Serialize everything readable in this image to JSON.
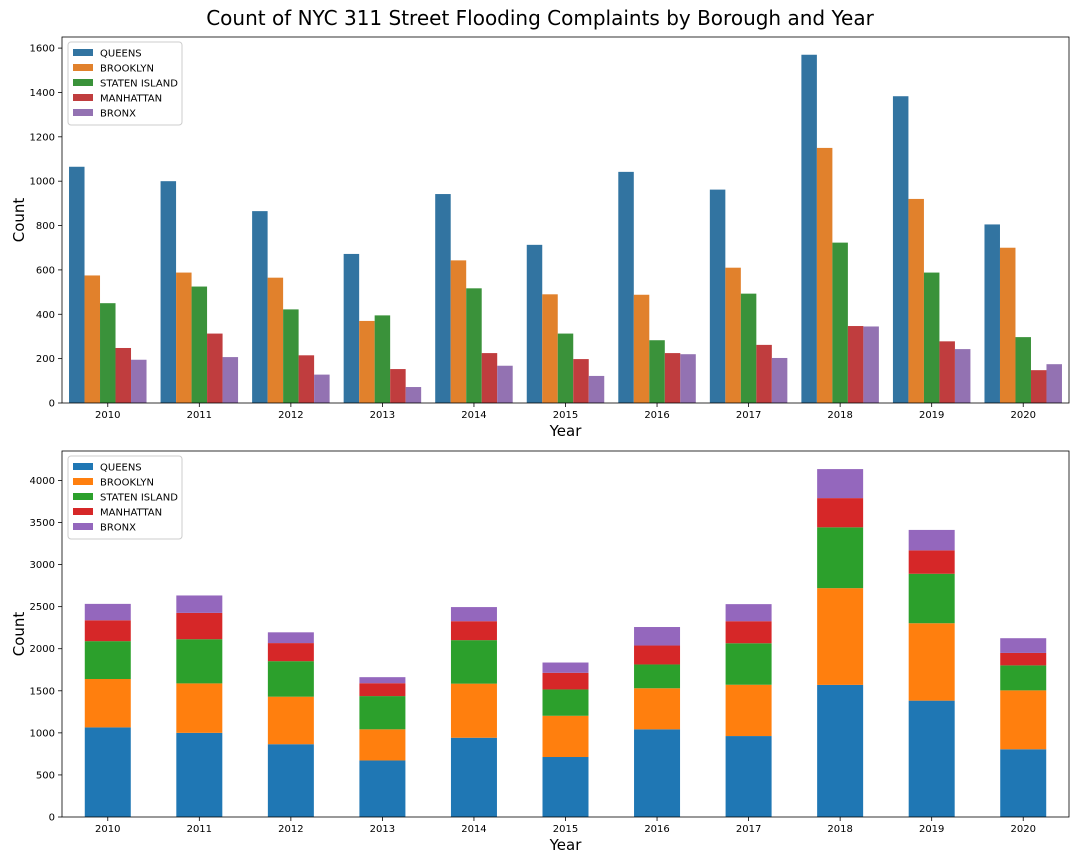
{
  "figure": {
    "title": "Count of NYC 311 Street Flooding Complaints by Borough and Year"
  },
  "colors": {
    "top": [
      "#3274a1",
      "#e1812c",
      "#3a923a",
      "#c03d3e",
      "#9372b2"
    ],
    "bottom": [
      "#1f77b4",
      "#ff7f0e",
      "#2ca02c",
      "#d62728",
      "#9467bd"
    ]
  },
  "chart_data": [
    {
      "type": "bar",
      "mode": "grouped",
      "title": "Count of NYC 311 Street Flooding Complaints by Borough and Year",
      "xlabel": "Year",
      "ylabel": "Count",
      "ylim": [
        0,
        1650
      ],
      "yticks": [
        0,
        200,
        400,
        600,
        800,
        1000,
        1200,
        1400,
        1600
      ],
      "legend_position": "top-left",
      "grid": false,
      "categories": [
        "2010",
        "2011",
        "2012",
        "2013",
        "2014",
        "2015",
        "2016",
        "2017",
        "2018",
        "2019",
        "2020"
      ],
      "series": [
        {
          "name": "QUEENS",
          "values": [
            1065,
            1000,
            865,
            672,
            942,
            713,
            1042,
            962,
            1570,
            1383,
            805
          ]
        },
        {
          "name": "BROOKLYN",
          "values": [
            575,
            588,
            565,
            370,
            643,
            490,
            488,
            610,
            1150,
            920,
            700
          ]
        },
        {
          "name": "STATEN ISLAND",
          "values": [
            450,
            525,
            422,
            395,
            517,
            313,
            283,
            493,
            723,
            588,
            297
          ]
        },
        {
          "name": "MANHATTAN",
          "values": [
            248,
            313,
            215,
            153,
            225,
            198,
            225,
            262,
            347,
            278,
            148
          ]
        },
        {
          "name": "BRONX",
          "values": [
            195,
            207,
            128,
            72,
            168,
            122,
            220,
            203,
            345,
            243,
            175
          ]
        }
      ]
    },
    {
      "type": "bar",
      "mode": "stacked",
      "xlabel": "Year",
      "ylabel": "Count",
      "ylim": [
        0,
        4350
      ],
      "yticks": [
        0,
        500,
        1000,
        1500,
        2000,
        2500,
        3000,
        3500,
        4000
      ],
      "legend_position": "top-left",
      "grid": false,
      "categories": [
        "2010",
        "2011",
        "2012",
        "2013",
        "2014",
        "2015",
        "2016",
        "2017",
        "2018",
        "2019",
        "2020"
      ],
      "series": [
        {
          "name": "QUEENS",
          "values": [
            1065,
            1000,
            865,
            672,
            942,
            713,
            1042,
            962,
            1570,
            1383,
            805
          ]
        },
        {
          "name": "BROOKLYN",
          "values": [
            575,
            588,
            565,
            370,
            643,
            490,
            488,
            610,
            1150,
            920,
            700
          ]
        },
        {
          "name": "STATEN ISLAND",
          "values": [
            450,
            525,
            422,
            395,
            517,
            313,
            283,
            493,
            723,
            588,
            297
          ]
        },
        {
          "name": "MANHATTAN",
          "values": [
            248,
            313,
            215,
            153,
            225,
            198,
            225,
            262,
            347,
            278,
            148
          ]
        },
        {
          "name": "BRONX",
          "values": [
            195,
            207,
            128,
            72,
            168,
            122,
            220,
            203,
            345,
            243,
            175
          ]
        }
      ]
    }
  ]
}
